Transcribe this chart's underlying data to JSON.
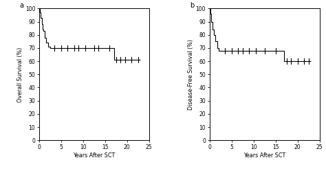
{
  "panel_a": {
    "label": "a",
    "ylabel": "Overall Survival (%)",
    "xlabel": "Years After SCT",
    "step_x": [
      0,
      0.2,
      0.4,
      0.6,
      0.8,
      1.0,
      1.3,
      1.6,
      2.0,
      2.5,
      3.0,
      16.5,
      17.0,
      23.0
    ],
    "step_y": [
      100,
      97,
      93,
      88,
      84,
      83,
      78,
      74,
      71,
      70,
      70,
      70,
      61,
      61
    ],
    "censors_x": [
      3.5,
      5.0,
      6.5,
      8.0,
      9.0,
      10.5,
      12.5,
      13.5,
      16.0,
      17.5,
      18.5,
      19.5,
      21.0,
      22.5
    ],
    "censors_y": [
      70,
      70,
      70,
      70,
      70,
      70,
      70,
      70,
      70,
      61,
      61,
      61,
      61,
      61
    ],
    "xlim": [
      0,
      25
    ],
    "ylim": [
      0,
      100
    ],
    "xticks": [
      0,
      5,
      10,
      15,
      20,
      25
    ],
    "yticks": [
      0,
      10,
      20,
      30,
      40,
      50,
      60,
      70,
      80,
      90,
      100
    ]
  },
  "panel_b": {
    "label": "b",
    "ylabel": "Disease-Free Survival (%)",
    "xlabel": "Years After SCT",
    "step_x": [
      0,
      0.2,
      0.4,
      0.7,
      1.0,
      1.3,
      1.7,
      2.1,
      2.5,
      16.5,
      17.0,
      23.0
    ],
    "step_y": [
      100,
      96,
      90,
      84,
      80,
      75,
      70,
      68,
      68,
      68,
      60,
      60
    ],
    "censors_x": [
      3.5,
      5.0,
      6.5,
      7.5,
      9.0,
      10.5,
      12.5,
      15.0,
      17.5,
      18.5,
      20.0,
      21.5,
      22.5
    ],
    "censors_y": [
      68,
      68,
      68,
      68,
      68,
      68,
      68,
      68,
      60,
      60,
      60,
      60,
      60
    ],
    "xlim": [
      0,
      25
    ],
    "ylim": [
      0,
      100
    ],
    "xticks": [
      0,
      5,
      10,
      15,
      20,
      25
    ],
    "yticks": [
      0,
      10,
      20,
      30,
      40,
      50,
      60,
      70,
      80,
      90,
      100
    ]
  },
  "line_color": "#000000",
  "bg_color": "#ffffff",
  "tick_fontsize": 5.5,
  "label_fontsize": 5.8,
  "panel_label_fontsize": 7
}
